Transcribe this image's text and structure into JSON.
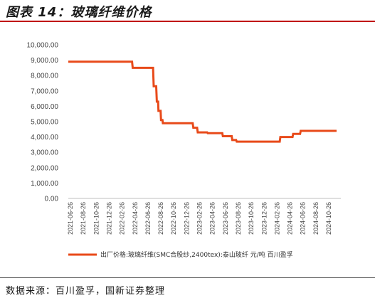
{
  "header": {
    "title": "图表 14：玻璃纤维价格"
  },
  "footer": {
    "source": "数据来源：百川盈孚，国新证券整理"
  },
  "colors": {
    "series": "#e84a1a",
    "rule": "#c00000"
  },
  "chart_data": {
    "type": "line",
    "title": "",
    "xlabel": "",
    "ylabel": "",
    "ylim": [
      0,
      10000
    ],
    "grid": false,
    "legend": "bottom",
    "y_ticks": [
      "0.00",
      "1,000.00",
      "2,000.00",
      "3,000.00",
      "4,000.00",
      "5,000.00",
      "6,000.00",
      "7,000.00",
      "8,000.00",
      "9,000.00",
      "10,000.00"
    ],
    "x_ticks": [
      "2021-06-26",
      "2021-08-26",
      "2021-10-26",
      "2021-12-26",
      "2022-02-26",
      "2022-04-26",
      "2022-06-26",
      "2022-08-26",
      "2022-10-26",
      "2022-12-26",
      "2023-02-26",
      "2023-04-26",
      "2023-06-26",
      "2023-08-26",
      "2023-10-26",
      "2023-12-26",
      "2024-02-26",
      "2024-04-26",
      "2024-06-26",
      "2024-08-26",
      "2024-10-26"
    ],
    "series": [
      {
        "name": "出厂价格:玻璃纤维(SMC合股纱,2400tex):泰山玻纤 元/吨 百川盈孚",
        "points": [
          [
            "2021-06-01",
            8900
          ],
          [
            "2022-04-01",
            8900
          ],
          [
            "2022-04-04",
            8500
          ],
          [
            "2022-07-10",
            8500
          ],
          [
            "2022-07-13",
            7300
          ],
          [
            "2022-07-25",
            7300
          ],
          [
            "2022-07-28",
            6300
          ],
          [
            "2022-08-03",
            6300
          ],
          [
            "2022-08-05",
            5700
          ],
          [
            "2022-08-15",
            5700
          ],
          [
            "2022-08-17",
            5100
          ],
          [
            "2022-08-24",
            5100
          ],
          [
            "2022-08-26",
            4900
          ],
          [
            "2023-01-15",
            4900
          ],
          [
            "2023-01-18",
            4600
          ],
          [
            "2023-02-05",
            4600
          ],
          [
            "2023-02-08",
            4300
          ],
          [
            "2023-03-25",
            4300
          ],
          [
            "2023-03-28",
            4250
          ],
          [
            "2023-06-05",
            4250
          ],
          [
            "2023-06-08",
            4050
          ],
          [
            "2023-07-20",
            4050
          ],
          [
            "2023-07-23",
            3800
          ],
          [
            "2023-08-10",
            3800
          ],
          [
            "2023-08-13",
            3700
          ],
          [
            "2024-03-05",
            3700
          ],
          [
            "2024-03-08",
            4000
          ],
          [
            "2024-05-05",
            4000
          ],
          [
            "2024-05-08",
            4200
          ],
          [
            "2024-06-10",
            4200
          ],
          [
            "2024-06-13",
            4400
          ],
          [
            "2024-12-01",
            4400
          ]
        ]
      }
    ]
  }
}
